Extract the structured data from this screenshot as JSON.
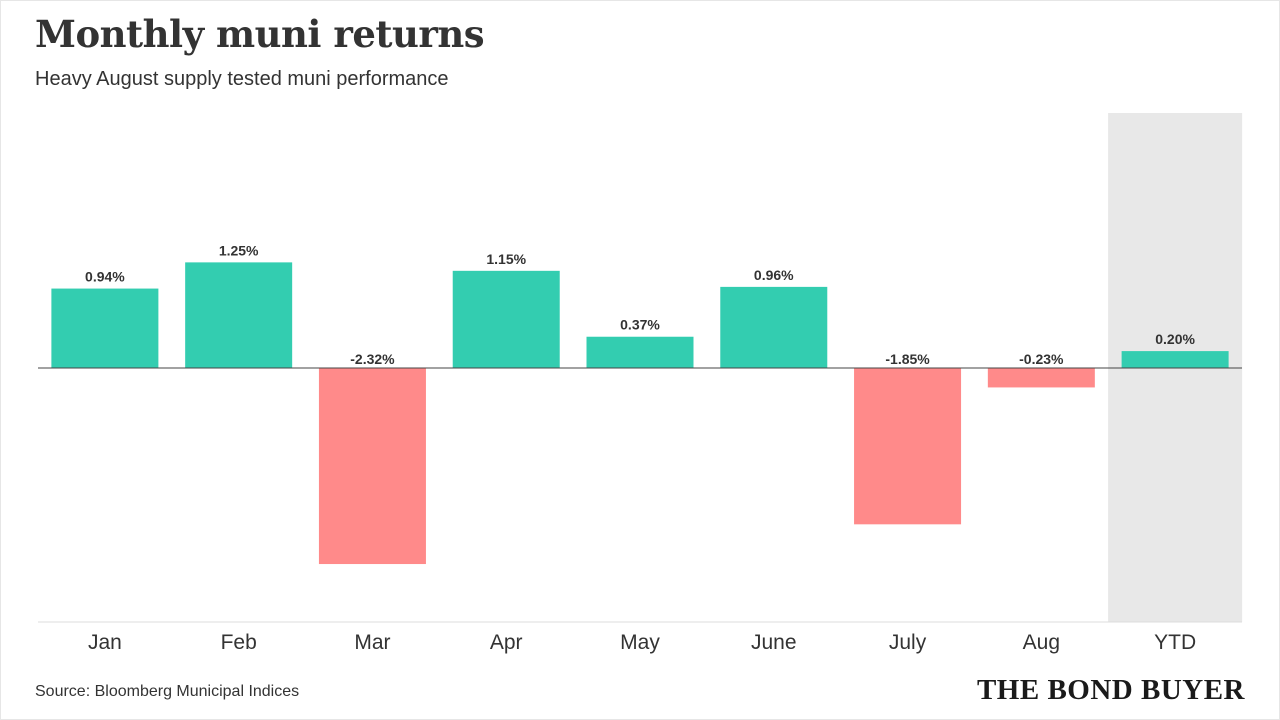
{
  "header": {
    "title": "Monthly muni returns",
    "subtitle": "Heavy August supply tested muni performance"
  },
  "footer": {
    "source": "Source: Bloomberg Municipal Indices",
    "brand": "THE BOND BUYER"
  },
  "colors": {
    "positive": "#33cdb0",
    "negative": "#ff8a8a",
    "highlight_band": "#e8e8e8",
    "baseline": "#444444",
    "axis": "#dddddd"
  },
  "chart_data": {
    "type": "bar",
    "categories": [
      "Jan",
      "Feb",
      "Mar",
      "Apr",
      "May",
      "June",
      "July",
      "Aug",
      "YTD"
    ],
    "values": [
      0.94,
      1.25,
      -2.32,
      1.15,
      0.37,
      0.96,
      -1.85,
      -0.23,
      0.2
    ],
    "data_labels": [
      "0.94%",
      "1.25%",
      "-2.32%",
      "1.15%",
      "0.37%",
      "0.96%",
      "-1.85%",
      "-0.23%",
      "0.20%"
    ],
    "highlighted_category": "YTD",
    "ylim": [
      -3.0,
      3.0
    ],
    "grid": false,
    "legend": "none"
  }
}
